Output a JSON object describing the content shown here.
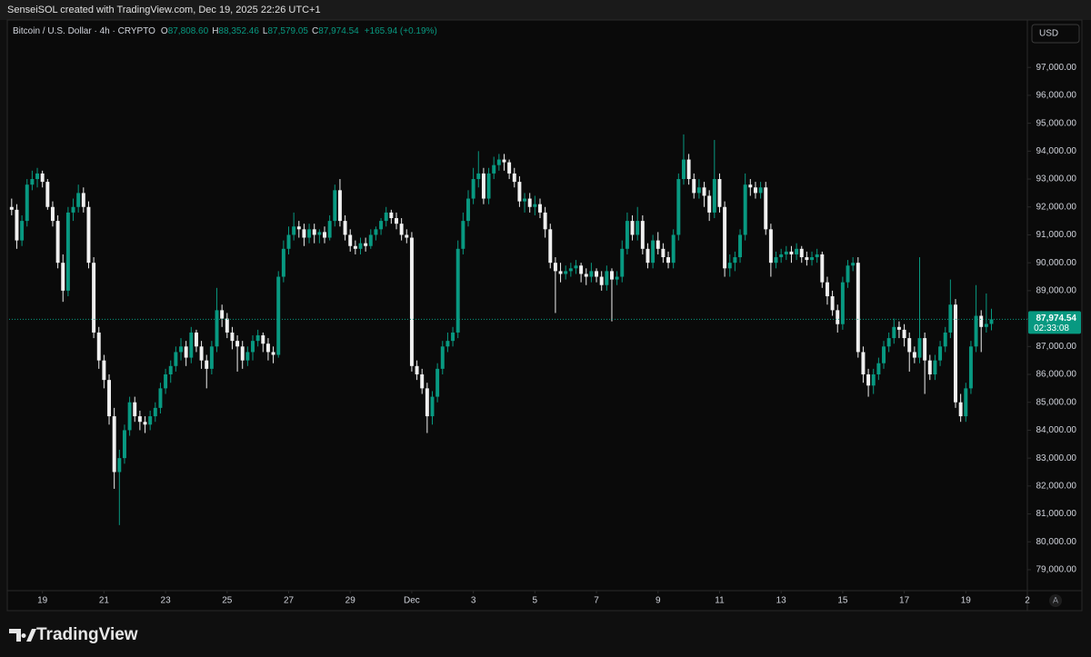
{
  "header": {
    "caption": "SenseiSOL created with TradingView.com, Dec 19, 2025 22:26 UTC+1"
  },
  "footer": {
    "logo": "TradingView"
  },
  "chart_data": {
    "type": "candlestick",
    "title": "Bitcoin / U.S. Dollar · 4h · CRYPTO",
    "ohlc_letters": [
      "O",
      "H",
      "L",
      "C"
    ],
    "last_ohlc_labels": [
      "87,808.60",
      "88,352.46",
      "87,579.05",
      "87,974.54"
    ],
    "change_label": "+165.94 (+0.19%)",
    "currency": "USD",
    "scale_button": "A",
    "last_price_label": "87,974.54",
    "countdown": "02:33:08",
    "up_color": "#089981",
    "down_color": "#f0f0f0",
    "grid": false,
    "xlim": [
      -0.5,
      198
    ],
    "xticks": [
      {
        "value": 6,
        "label": "19"
      },
      {
        "value": 18,
        "label": "21"
      },
      {
        "value": 30,
        "label": "23"
      },
      {
        "value": 42,
        "label": "25"
      },
      {
        "value": 54,
        "label": "27"
      },
      {
        "value": 66,
        "label": "29"
      },
      {
        "value": 78,
        "label": "Dec"
      },
      {
        "value": 90,
        "label": "3"
      },
      {
        "value": 102,
        "label": "5"
      },
      {
        "value": 114,
        "label": "7"
      },
      {
        "value": 126,
        "label": "9"
      },
      {
        "value": 138,
        "label": "11"
      },
      {
        "value": 150,
        "label": "13"
      },
      {
        "value": 162,
        "label": "15"
      },
      {
        "value": 174,
        "label": "17"
      },
      {
        "value": 186,
        "label": "19"
      },
      {
        "value": 198,
        "label": "2"
      }
    ],
    "ylim": [
      78250,
      98700
    ],
    "yticks": [
      {
        "value": 79000,
        "label": "79,000.00"
      },
      {
        "value": 80000,
        "label": "80,000.00"
      },
      {
        "value": 81000,
        "label": "81,000.00"
      },
      {
        "value": 82000,
        "label": "82,000.00"
      },
      {
        "value": 83000,
        "label": "83,000.00"
      },
      {
        "value": 84000,
        "label": "84,000.00"
      },
      {
        "value": 85000,
        "label": "85,000.00"
      },
      {
        "value": 86000,
        "label": "86,000.00"
      },
      {
        "value": 87000,
        "label": "87,000.00"
      },
      {
        "value": 88000,
        "label": "88,000.00"
      },
      {
        "value": 89000,
        "label": "89,000.00"
      },
      {
        "value": 90000,
        "label": "90,000.00"
      },
      {
        "value": 91000,
        "label": "91,000.00"
      },
      {
        "value": 92000,
        "label": "92,000.00"
      },
      {
        "value": 93000,
        "label": "93,000.00"
      },
      {
        "value": 94000,
        "label": "94,000.00"
      },
      {
        "value": 95000,
        "label": "95,000.00"
      },
      {
        "value": 96000,
        "label": "96,000.00"
      },
      {
        "value": 97000,
        "label": "97,000.00"
      }
    ],
    "candles": [
      [
        92000,
        92300,
        91700,
        91900
      ],
      [
        91900,
        92100,
        90500,
        90800
      ],
      [
        90800,
        91700,
        90600,
        91500
      ],
      [
        91500,
        93000,
        91300,
        92800
      ],
      [
        92800,
        93300,
        92600,
        93000
      ],
      [
        93000,
        93400,
        92700,
        93200
      ],
      [
        93200,
        93300,
        92700,
        92900
      ],
      [
        92900,
        93000,
        91900,
        92000
      ],
      [
        92000,
        92200,
        91300,
        91500
      ],
      [
        91500,
        91700,
        89800,
        90000
      ],
      [
        90000,
        90300,
        88600,
        89000
      ],
      [
        89000,
        92000,
        88800,
        91800
      ],
      [
        91800,
        92300,
        91500,
        92000
      ],
      [
        92000,
        92800,
        91800,
        92500
      ],
      [
        92500,
        92700,
        91800,
        92000
      ],
      [
        92000,
        92200,
        89800,
        90000
      ],
      [
        90000,
        90200,
        87300,
        87500
      ],
      [
        87500,
        87700,
        86200,
        86500
      ],
      [
        86500,
        86700,
        85500,
        85800
      ],
      [
        85800,
        86000,
        84200,
        84500
      ],
      [
        84500,
        84800,
        81900,
        82500
      ],
      [
        82500,
        83300,
        80600,
        83000
      ],
      [
        83000,
        84200,
        82800,
        84000
      ],
      [
        84000,
        85200,
        83800,
        85000
      ],
      [
        85000,
        85200,
        84300,
        84500
      ],
      [
        84500,
        84700,
        84000,
        84300
      ],
      [
        84300,
        84500,
        83900,
        84200
      ],
      [
        84200,
        84700,
        84000,
        84500
      ],
      [
        84500,
        85000,
        84300,
        84800
      ],
      [
        84800,
        85700,
        84600,
        85500
      ],
      [
        85500,
        86200,
        85300,
        86000
      ],
      [
        86000,
        86500,
        85700,
        86300
      ],
      [
        86300,
        87000,
        86100,
        86800
      ],
      [
        86800,
        87300,
        86500,
        87000
      ],
      [
        87000,
        87200,
        86300,
        86600
      ],
      [
        86600,
        87700,
        86400,
        87500
      ],
      [
        87500,
        87600,
        86800,
        87000
      ],
      [
        87000,
        87200,
        86200,
        86500
      ],
      [
        86500,
        86700,
        85500,
        86200
      ],
      [
        86200,
        87200,
        86000,
        87000
      ],
      [
        87000,
        89100,
        86800,
        88300
      ],
      [
        88300,
        88500,
        87700,
        88000
      ],
      [
        88000,
        88200,
        87300,
        87500
      ],
      [
        87500,
        87700,
        86900,
        87200
      ],
      [
        87200,
        87400,
        86100,
        87000
      ],
      [
        87000,
        87200,
        86200,
        86500
      ],
      [
        86500,
        87000,
        86300,
        86800
      ],
      [
        86800,
        87400,
        86500,
        87200
      ],
      [
        87200,
        87600,
        87000,
        87400
      ],
      [
        87400,
        87500,
        86800,
        87100
      ],
      [
        87100,
        87300,
        86500,
        86800
      ],
      [
        86800,
        87000,
        86400,
        86700
      ],
      [
        86700,
        89700,
        86600,
        89500
      ],
      [
        89500,
        90800,
        89300,
        90500
      ],
      [
        90500,
        91300,
        90300,
        91000
      ],
      [
        91000,
        91800,
        90800,
        91300
      ],
      [
        91300,
        91500,
        90900,
        91200
      ],
      [
        91200,
        91400,
        90600,
        90900
      ],
      [
        90900,
        91400,
        90700,
        91200
      ],
      [
        91200,
        91400,
        90700,
        91000
      ],
      [
        91000,
        91200,
        90700,
        91100
      ],
      [
        91100,
        91300,
        90700,
        90900
      ],
      [
        90900,
        91700,
        90800,
        91500
      ],
      [
        91500,
        92800,
        91300,
        92600
      ],
      [
        92600,
        93000,
        91300,
        91500
      ],
      [
        91500,
        91700,
        90800,
        91000
      ],
      [
        91000,
        91200,
        90400,
        90600
      ],
      [
        90600,
        90800,
        90300,
        90500
      ],
      [
        90500,
        90900,
        90300,
        90700
      ],
      [
        90700,
        90900,
        90400,
        90600
      ],
      [
        90600,
        91200,
        90500,
        91000
      ],
      [
        91000,
        91300,
        90800,
        91200
      ],
      [
        91200,
        91600,
        91000,
        91500
      ],
      [
        91500,
        92000,
        91300,
        91800
      ],
      [
        91800,
        91900,
        91400,
        91600
      ],
      [
        91600,
        91800,
        91200,
        91400
      ],
      [
        91400,
        91600,
        90800,
        91000
      ],
      [
        91000,
        91200,
        90700,
        90900
      ],
      [
        90900,
        91100,
        86100,
        86300
      ],
      [
        86300,
        86500,
        85800,
        86000
      ],
      [
        86000,
        86200,
        85300,
        85500
      ],
      [
        85500,
        85700,
        83900,
        84500
      ],
      [
        84500,
        85400,
        84200,
        85200
      ],
      [
        85200,
        86400,
        85000,
        86200
      ],
      [
        86200,
        87200,
        86000,
        87000
      ],
      [
        87000,
        87500,
        86800,
        87200
      ],
      [
        87200,
        87700,
        87000,
        87500
      ],
      [
        87500,
        90800,
        87300,
        90500
      ],
      [
        90500,
        91800,
        90300,
        91500
      ],
      [
        91500,
        92600,
        91300,
        92300
      ],
      [
        92300,
        93400,
        92100,
        93000
      ],
      [
        93000,
        94000,
        92700,
        93200
      ],
      [
        93200,
        93400,
        92100,
        92300
      ],
      [
        92300,
        93400,
        92100,
        93200
      ],
      [
        93200,
        93800,
        93000,
        93500
      ],
      [
        93500,
        93900,
        93300,
        93700
      ],
      [
        93700,
        93900,
        93300,
        93600
      ],
      [
        93600,
        93700,
        93000,
        93200
      ],
      [
        93200,
        93400,
        92700,
        92900
      ],
      [
        92900,
        93100,
        92000,
        92200
      ],
      [
        92200,
        92500,
        91800,
        92300
      ],
      [
        92300,
        92500,
        91800,
        92000
      ],
      [
        92000,
        92400,
        91700,
        92100
      ],
      [
        92100,
        92300,
        91600,
        91800
      ],
      [
        91800,
        92000,
        90900,
        91200
      ],
      [
        91200,
        91400,
        89800,
        90000
      ],
      [
        90000,
        90200,
        88200,
        89700
      ],
      [
        89700,
        90000,
        89300,
        89600
      ],
      [
        89600,
        89900,
        89400,
        89700
      ],
      [
        89700,
        90000,
        89500,
        89800
      ],
      [
        89800,
        90100,
        89600,
        89900
      ],
      [
        89900,
        90000,
        89300,
        89600
      ],
      [
        89600,
        89800,
        89200,
        89500
      ],
      [
        89500,
        90000,
        89300,
        89700
      ],
      [
        89700,
        89800,
        89300,
        89500
      ],
      [
        89500,
        89700,
        89000,
        89200
      ],
      [
        89200,
        89900,
        89000,
        89700
      ],
      [
        89700,
        89800,
        87900,
        89400
      ],
      [
        89400,
        89700,
        89200,
        89500
      ],
      [
        89500,
        90800,
        89300,
        90500
      ],
      [
        90500,
        91800,
        90300,
        91500
      ],
      [
        91500,
        91700,
        90800,
        91000
      ],
      [
        91000,
        92000,
        90800,
        91500
      ],
      [
        91500,
        91700,
        90300,
        90500
      ],
      [
        90500,
        90700,
        89800,
        90000
      ],
      [
        90000,
        91000,
        89800,
        90800
      ],
      [
        90800,
        91100,
        90300,
        90500
      ],
      [
        90500,
        90700,
        90000,
        90200
      ],
      [
        90200,
        90400,
        89800,
        90000
      ],
      [
        90000,
        91200,
        89800,
        91000
      ],
      [
        91000,
        93200,
        90800,
        93000
      ],
      [
        93000,
        94600,
        92800,
        93700
      ],
      [
        93700,
        93900,
        92800,
        93000
      ],
      [
        93000,
        93200,
        92300,
        92500
      ],
      [
        92500,
        93000,
        92300,
        92700
      ],
      [
        92700,
        92900,
        92000,
        92400
      ],
      [
        92400,
        92600,
        91500,
        91800
      ],
      [
        91800,
        94400,
        91600,
        93000
      ],
      [
        93000,
        93200,
        91800,
        92000
      ],
      [
        92000,
        92200,
        89500,
        89800
      ],
      [
        89800,
        90300,
        89500,
        90000
      ],
      [
        90000,
        90400,
        89700,
        90200
      ],
      [
        90200,
        91200,
        90000,
        91000
      ],
      [
        91000,
        93200,
        90800,
        92800
      ],
      [
        92800,
        93000,
        92400,
        92700
      ],
      [
        92700,
        92900,
        92300,
        92500
      ],
      [
        92500,
        92900,
        92300,
        92700
      ],
      [
        92700,
        92900,
        91000,
        91200
      ],
      [
        91200,
        91400,
        89500,
        90000
      ],
      [
        90000,
        90400,
        89800,
        90200
      ],
      [
        90200,
        90500,
        90000,
        90300
      ],
      [
        90300,
        90600,
        90100,
        90400
      ],
      [
        90400,
        90600,
        90000,
        90300
      ],
      [
        90300,
        90700,
        90100,
        90500
      ],
      [
        90500,
        90600,
        90000,
        90200
      ],
      [
        90200,
        90400,
        89900,
        90100
      ],
      [
        90100,
        90400,
        89900,
        90200
      ],
      [
        90200,
        90500,
        90000,
        90300
      ],
      [
        90300,
        90400,
        89100,
        89300
      ],
      [
        89300,
        89500,
        88500,
        88800
      ],
      [
        88800,
        89000,
        88100,
        88300
      ],
      [
        88300,
        88500,
        87500,
        87800
      ],
      [
        87800,
        89500,
        87600,
        89300
      ],
      [
        89300,
        90100,
        89100,
        89900
      ],
      [
        89900,
        90200,
        89700,
        90000
      ],
      [
        90000,
        90200,
        86600,
        86800
      ],
      [
        86800,
        87000,
        85700,
        86000
      ],
      [
        86000,
        86200,
        85200,
        85600
      ],
      [
        85600,
        86200,
        85300,
        86000
      ],
      [
        86000,
        86600,
        85800,
        86400
      ],
      [
        86400,
        87200,
        86200,
        87000
      ],
      [
        87000,
        87500,
        86800,
        87300
      ],
      [
        87300,
        88000,
        87100,
        87700
      ],
      [
        87700,
        87900,
        87300,
        87600
      ],
      [
        87600,
        87800,
        87000,
        87300
      ],
      [
        87300,
        87500,
        86100,
        86800
      ],
      [
        86800,
        87000,
        86400,
        86600
      ],
      [
        86600,
        90200,
        86400,
        87300
      ],
      [
        87300,
        87500,
        85300,
        86500
      ],
      [
        86500,
        86700,
        85800,
        86000
      ],
      [
        86000,
        86700,
        85800,
        86500
      ],
      [
        86500,
        87200,
        86300,
        87000
      ],
      [
        87000,
        87700,
        86800,
        87500
      ],
      [
        87500,
        89400,
        87300,
        88500
      ],
      [
        88500,
        88700,
        84800,
        85000
      ],
      [
        85000,
        85300,
        84300,
        84500
      ],
      [
        84500,
        85700,
        84300,
        85500
      ],
      [
        85500,
        87200,
        85300,
        87000
      ],
      [
        87000,
        89200,
        86800,
        88100
      ],
      [
        88100,
        88300,
        86800,
        87700
      ],
      [
        87700,
        88900,
        87500,
        87808.6
      ],
      [
        87808.6,
        88352.46,
        87579.05,
        87974.54
      ]
    ]
  }
}
